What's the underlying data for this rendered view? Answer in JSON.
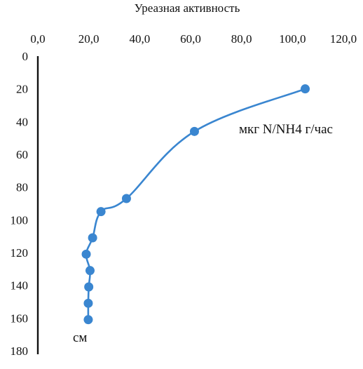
{
  "chart_data": {
    "type": "scatter",
    "title": "Уреазная активность",
    "x_axis": {
      "position": "top",
      "range": [
        0,
        120
      ],
      "tick_labels": [
        "0,0",
        "20,0",
        "40,0",
        "60,0",
        "80,0",
        "100,0",
        "120,0"
      ]
    },
    "y_axis": {
      "inverted": true,
      "range": [
        0,
        180
      ],
      "tick_labels": [
        "0",
        "20",
        "40",
        "60",
        "80",
        "100",
        "120",
        "140",
        "160",
        "180"
      ]
    },
    "grid": false,
    "line": "smoothed",
    "series": [
      {
        "color": "#3a86d0",
        "x": [
          105.0,
          61.5,
          34.8,
          24.8,
          21.5,
          19.0,
          20.5,
          20.0,
          19.8,
          19.8
        ],
        "y": [
          20,
          46,
          87,
          95,
          111,
          121,
          131,
          141,
          151,
          161
        ]
      }
    ],
    "annotations": [
      {
        "text": "мкг N/NH4 г/час"
      },
      {
        "text": "см"
      }
    ]
  }
}
